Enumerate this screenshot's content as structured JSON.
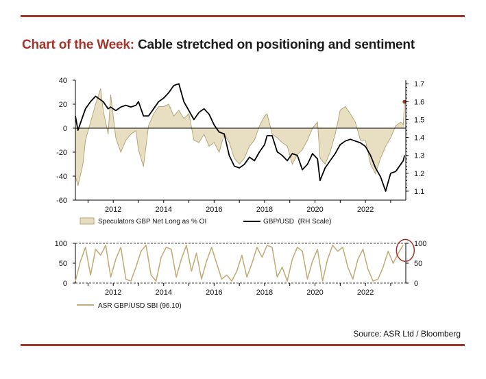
{
  "title": {
    "prefix": "Chart of the Week:",
    "main": "Cable stretched on positioning and sentiment"
  },
  "source": "Source: ASR Ltd / Bloomberg",
  "colors": {
    "brand": "#a3342b",
    "positioning_fill": "#e8dfc2",
    "positioning_line": "#b5a77a",
    "fx_line": "#000000",
    "sbi_line": "#c2ae7a",
    "highlight": "#a3342b"
  },
  "chart_data": [
    {
      "type": "area",
      "x_range": [
        2010.5,
        2023.6
      ],
      "x_ticks": [
        "2012",
        "2014",
        "2016",
        "2018",
        "2020",
        "2022"
      ],
      "y_left": {
        "range": [
          -60,
          40
        ],
        "ticks": [
          "40",
          "20",
          "0",
          "-20",
          "-40",
          "-60"
        ]
      },
      "y_right": {
        "range": [
          1.05,
          1.72
        ],
        "ticks": [
          "1.7",
          "1.6",
          "1.5",
          "1.4",
          "1.3",
          "1.2",
          "1.1"
        ]
      },
      "legend": [
        "Speculators GBP Net Long as % OI",
        "GBP/USD  (RH Scale)"
      ],
      "series": [
        {
          "name": "Speculators GBP Net Long as % OI",
          "axis": "left",
          "style": "area",
          "x": [
            2010.5,
            2010.6,
            2010.8,
            2010.9,
            2011.1,
            2011.3,
            2011.5,
            2011.6,
            2011.8,
            2011.9,
            2012.1,
            2012.3,
            2012.5,
            2012.7,
            2012.9,
            2013.0,
            2013.2,
            2013.4,
            2013.6,
            2013.8,
            2014.0,
            2014.2,
            2014.4,
            2014.6,
            2014.8,
            2015.0,
            2015.2,
            2015.4,
            2015.6,
            2015.8,
            2016.0,
            2016.2,
            2016.4,
            2016.6,
            2016.8,
            2017.0,
            2017.2,
            2017.4,
            2017.6,
            2017.8,
            2018.0,
            2018.1,
            2018.3,
            2018.5,
            2018.7,
            2018.9,
            2019.1,
            2019.3,
            2019.5,
            2019.7,
            2019.9,
            2020.1,
            2020.2,
            2020.4,
            2020.6,
            2020.8,
            2021.0,
            2021.2,
            2021.4,
            2021.6,
            2021.8,
            2022.0,
            2022.2,
            2022.4,
            2022.6,
            2022.8,
            2023.0,
            2023.2,
            2023.4,
            2023.5,
            2023.55
          ],
          "values": [
            -40,
            -48,
            -30,
            -10,
            5,
            20,
            33,
            15,
            -5,
            28,
            -8,
            -20,
            -10,
            -5,
            -2,
            -18,
            -32,
            2,
            12,
            18,
            18,
            20,
            10,
            15,
            8,
            12,
            -10,
            -12,
            -5,
            -15,
            -12,
            -20,
            -5,
            -12,
            -25,
            -30,
            -25,
            -15,
            -10,
            2,
            10,
            12,
            -5,
            -8,
            -12,
            -15,
            -30,
            -22,
            -18,
            -10,
            0,
            5,
            -25,
            -30,
            -20,
            -5,
            15,
            18,
            12,
            5,
            -10,
            -10,
            -30,
            -38,
            -25,
            -15,
            -8,
            2,
            5,
            3,
            22
          ]
        },
        {
          "name": "GBP/USD  (RH Scale)",
          "axis": "right",
          "style": "line",
          "x": [
            2010.5,
            2010.6,
            2010.8,
            2010.9,
            2011.1,
            2011.3,
            2011.5,
            2011.6,
            2011.8,
            2011.9,
            2012.1,
            2012.3,
            2012.5,
            2012.7,
            2012.9,
            2013.0,
            2013.2,
            2013.4,
            2013.6,
            2013.8,
            2014.0,
            2014.2,
            2014.4,
            2014.6,
            2014.8,
            2015.0,
            2015.2,
            2015.4,
            2015.6,
            2015.8,
            2016.0,
            2016.2,
            2016.4,
            2016.6,
            2016.8,
            2017.0,
            2017.2,
            2017.4,
            2017.6,
            2017.8,
            2018.0,
            2018.1,
            2018.3,
            2018.5,
            2018.7,
            2018.9,
            2019.1,
            2019.3,
            2019.5,
            2019.7,
            2019.9,
            2020.1,
            2020.2,
            2020.4,
            2020.6,
            2020.8,
            2021.0,
            2021.2,
            2021.4,
            2021.6,
            2021.8,
            2022.0,
            2022.2,
            2022.4,
            2022.6,
            2022.8,
            2023.0,
            2023.2,
            2023.4,
            2023.5,
            2023.55
          ],
          "values": [
            1.52,
            1.44,
            1.52,
            1.56,
            1.6,
            1.63,
            1.61,
            1.6,
            1.56,
            1.57,
            1.55,
            1.57,
            1.58,
            1.57,
            1.58,
            1.6,
            1.52,
            1.52,
            1.56,
            1.6,
            1.62,
            1.65,
            1.69,
            1.7,
            1.6,
            1.55,
            1.5,
            1.54,
            1.56,
            1.53,
            1.47,
            1.43,
            1.42,
            1.3,
            1.24,
            1.23,
            1.25,
            1.29,
            1.27,
            1.32,
            1.36,
            1.41,
            1.41,
            1.32,
            1.3,
            1.27,
            1.31,
            1.3,
            1.22,
            1.25,
            1.31,
            1.28,
            1.16,
            1.23,
            1.27,
            1.31,
            1.36,
            1.38,
            1.39,
            1.38,
            1.37,
            1.35,
            1.3,
            1.23,
            1.18,
            1.1,
            1.2,
            1.21,
            1.25,
            1.27,
            1.3
          ]
        }
      ],
      "markers": [
        {
          "series": "Speculators GBP Net Long as % OI",
          "x": 2023.55,
          "y": 22
        }
      ]
    },
    {
      "type": "line",
      "x_range": [
        2010.5,
        2023.6
      ],
      "x_ticks": [
        "2012",
        "2014",
        "2016",
        "2018",
        "2020",
        "2022"
      ],
      "y_left": {
        "range": [
          0,
          100
        ],
        "ticks": [
          "100",
          "50",
          "0"
        ]
      },
      "y_right": {
        "range": [
          0,
          100
        ],
        "ticks": [
          "100",
          "50",
          "0"
        ]
      },
      "reference_lines": [
        0,
        100
      ],
      "legend": [
        "ASR GBP/USD SBI (96.10)"
      ],
      "series": [
        {
          "name": "ASR GBP/USD SBI (96.10)",
          "x": [
            2010.5,
            2010.7,
            2010.9,
            2011.1,
            2011.3,
            2011.5,
            2011.7,
            2011.9,
            2012.1,
            2012.3,
            2012.5,
            2012.7,
            2012.9,
            2013.1,
            2013.3,
            2013.5,
            2013.7,
            2013.9,
            2014.1,
            2014.3,
            2014.5,
            2014.7,
            2014.9,
            2015.1,
            2015.3,
            2015.5,
            2015.7,
            2015.9,
            2016.1,
            2016.3,
            2016.5,
            2016.7,
            2016.9,
            2017.1,
            2017.3,
            2017.5,
            2017.7,
            2017.9,
            2018.1,
            2018.3,
            2018.5,
            2018.7,
            2018.9,
            2019.1,
            2019.3,
            2019.5,
            2019.7,
            2019.9,
            2020.1,
            2020.3,
            2020.5,
            2020.7,
            2020.9,
            2021.1,
            2021.3,
            2021.5,
            2021.7,
            2021.9,
            2022.1,
            2022.3,
            2022.5,
            2022.7,
            2022.9,
            2023.1,
            2023.3,
            2023.5
          ],
          "values": [
            5,
            55,
            90,
            20,
            85,
            70,
            95,
            15,
            60,
            90,
            10,
            5,
            40,
            80,
            95,
            20,
            5,
            65,
            90,
            85,
            15,
            60,
            95,
            30,
            75,
            10,
            55,
            90,
            50,
            10,
            20,
            5,
            30,
            70,
            15,
            50,
            90,
            65,
            95,
            90,
            15,
            40,
            5,
            60,
            90,
            80,
            10,
            55,
            85,
            5,
            60,
            95,
            80,
            90,
            40,
            10,
            60,
            85,
            35,
            5,
            10,
            40,
            80,
            50,
            75,
            96
          ]
        }
      ]
    }
  ]
}
